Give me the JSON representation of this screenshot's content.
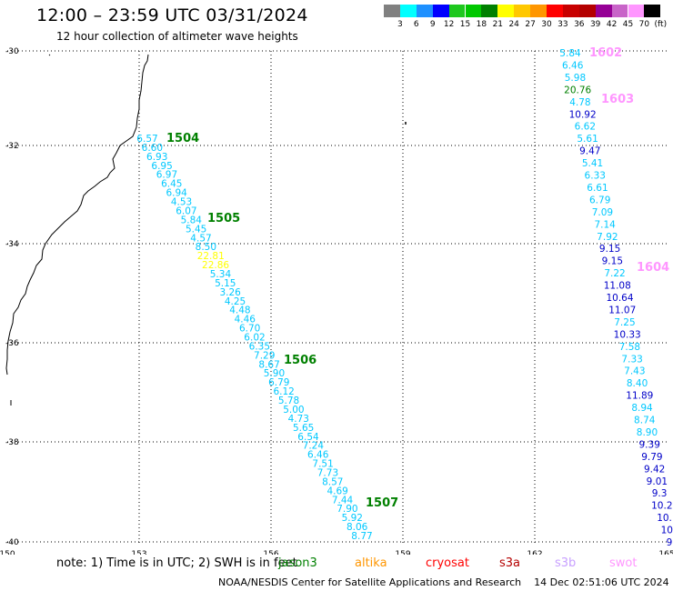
{
  "header": {
    "title": "12:00 – 23:59 UTC 03/31/2024",
    "subtitle": "12 hour collection of altimeter wave heights"
  },
  "colorbar": {
    "colors": [
      "#808080",
      "#00ffff",
      "#1e90ff",
      "#0000ff",
      "#1ec81e",
      "#00c800",
      "#008000",
      "#ffff00",
      "#ffc800",
      "#ff9600",
      "#ff0000",
      "#c80000",
      "#b40000",
      "#960096",
      "#c864c8",
      "#ff96ff",
      "#000000"
    ],
    "labels": [
      "3",
      "6",
      "9",
      "12",
      "15",
      "18",
      "21",
      "24",
      "27",
      "30",
      "33",
      "36",
      "39",
      "42",
      "45",
      "70",
      "(ft)"
    ]
  },
  "map": {
    "x_ticks": [
      "150",
      "153",
      "156",
      "159",
      "162",
      "165"
    ],
    "y_ticks": [
      "-30",
      "-32",
      "-34",
      "-36",
      "-38",
      "-40"
    ],
    "coast_color": "#000000",
    "grid_color": "#000000"
  },
  "tracks": [
    {
      "label": "1504",
      "label_color": "#008000"
    },
    {
      "label": "1505",
      "label_color": "#008000"
    },
    {
      "label": "1506",
      "label_color": "#008000"
    },
    {
      "label": "1507",
      "label_color": "#008000"
    },
    {
      "label": "1602",
      "label_color": "#ff96ff"
    },
    {
      "label": "1603",
      "label_color": "#ff96ff"
    },
    {
      "label": "1604",
      "label_color": "#ff96ff"
    }
  ],
  "west_track": {
    "values": [
      "6.57",
      "6.60",
      "6.93",
      "6.95",
      "6.97",
      "6.45",
      "6.94",
      "4.53",
      "6.07",
      "5.84",
      "5.45",
      "4.57",
      "8.50",
      "22.81",
      "22.86",
      "5.34",
      "5.15",
      "3.26",
      "4.25",
      "4.48",
      "4.46",
      "6.70",
      "6.02",
      "6.35",
      "7.29",
      "8.67",
      "5.90",
      "6.79",
      "6.12",
      "5.78",
      "5.00",
      "4.73",
      "5.65",
      "6.54",
      "7.24",
      "6.46",
      "7.51",
      "7.73",
      "8.57",
      "4.69",
      "7.44",
      "7.90",
      "5.92",
      "8.06",
      "8.77"
    ],
    "colors": [
      "#00c8ff",
      "#00c8ff",
      "#00c8ff",
      "#00c8ff",
      "#00c8ff",
      "#00c8ff",
      "#00c8ff",
      "#00c8ff",
      "#00c8ff",
      "#00c8ff",
      "#00c8ff",
      "#00c8ff",
      "#00c8ff",
      "#ffff00",
      "#ffff00",
      "#00c8ff",
      "#00c8ff",
      "#00c8ff",
      "#00c8ff",
      "#00c8ff",
      "#00c8ff",
      "#00c8ff",
      "#00c8ff",
      "#00c8ff",
      "#00c8ff",
      "#00c8ff",
      "#00c8ff",
      "#00c8ff",
      "#00c8ff",
      "#00c8ff",
      "#00c8ff",
      "#00c8ff",
      "#00c8ff",
      "#00c8ff",
      "#00c8ff",
      "#00c8ff",
      "#00c8ff",
      "#00c8ff",
      "#00c8ff",
      "#00c8ff",
      "#00c8ff",
      "#00c8ff",
      "#00c8ff",
      "#00c8ff",
      "#00c8ff"
    ]
  },
  "east_track": {
    "values": [
      "5.84",
      "6.46",
      "5.98",
      "20.76",
      "4.78",
      "10.92",
      "6.62",
      "5.61",
      "9.47",
      "5.41",
      "6.33",
      "6.61",
      "6.79",
      "7.09",
      "7.14",
      "7.92",
      "9.15",
      "9.15",
      "7.22",
      "11.08",
      "10.64",
      "11.07",
      "7.25",
      "10.33",
      "7.58",
      "7.33",
      "7.43",
      "8.40",
      "11.89",
      "8.94",
      "8.74",
      "8.90",
      "9.39",
      "9.79",
      "9.42",
      "9.01",
      "9.3",
      "10.2",
      "10.",
      "10",
      "9"
    ],
    "colors": [
      "#00c8ff",
      "#00c8ff",
      "#00c8ff",
      "#008000",
      "#00c8ff",
      "#0000c8",
      "#00c8ff",
      "#00c8ff",
      "#0000c8",
      "#00c8ff",
      "#00c8ff",
      "#00c8ff",
      "#00c8ff",
      "#00c8ff",
      "#00c8ff",
      "#00c8ff",
      "#0000c8",
      "#0000c8",
      "#00c8ff",
      "#0000c8",
      "#0000c8",
      "#0000c8",
      "#00c8ff",
      "#0000c8",
      "#00c8ff",
      "#00c8ff",
      "#00c8ff",
      "#00c8ff",
      "#0000c8",
      "#00c8ff",
      "#00c8ff",
      "#00c8ff",
      "#0000c8",
      "#0000c8",
      "#0000c8",
      "#0000c8",
      "#0000c8",
      "#0000c8",
      "#0000c8",
      "#0000c8",
      "#0000c8"
    ]
  },
  "note": {
    "text": "note:  1) Time is in UTC; 2) SWH is in feet",
    "satellites": [
      {
        "name": "jason3",
        "color": "#008000"
      },
      {
        "name": "altika",
        "color": "#ff9600"
      },
      {
        "name": "cryosat",
        "color": "#ff0000"
      },
      {
        "name": "s3a",
        "color": "#b40000"
      },
      {
        "name": "s3b",
        "color": "#c8a0ff"
      },
      {
        "name": "swot",
        "color": "#ff96ff"
      }
    ]
  },
  "footer": {
    "credit": "NOAA/NESDIS Center for Satellite Applications and Research",
    "timestamp": "14 Dec 02:51:06 UTC 2024"
  }
}
